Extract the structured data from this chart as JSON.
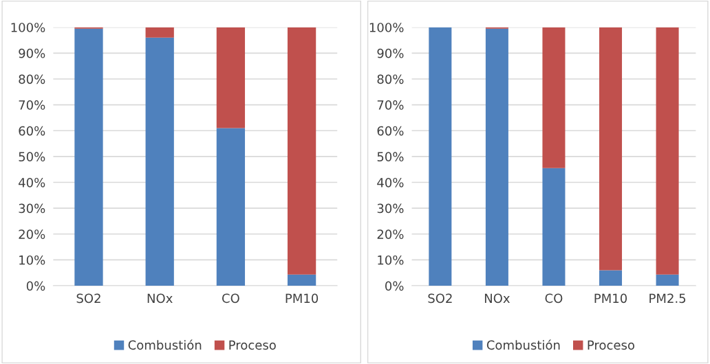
{
  "chart_data": [
    {
      "type": "bar",
      "stacked": true,
      "categories": [
        "SO2",
        "NOx",
        "CO",
        "PM10"
      ],
      "series": [
        {
          "name": "Combustión",
          "color": "#4f81bd",
          "values": [
            99.5,
            96,
            61,
            4.3
          ]
        },
        {
          "name": "Proceso",
          "color": "#c0504d",
          "values": [
            0.5,
            4,
            39,
            95.7
          ]
        }
      ],
      "ylim": [
        0,
        100
      ],
      "yticks": [
        {
          "value": 0,
          "label": "0%"
        },
        {
          "value": 10,
          "label": "10%"
        },
        {
          "value": 20,
          "label": "20%"
        },
        {
          "value": 30,
          "label": "30%"
        },
        {
          "value": 40,
          "label": "40%"
        },
        {
          "value": 50,
          "label": "50%"
        },
        {
          "value": 60,
          "label": "60%"
        },
        {
          "value": 70,
          "label": "70%"
        },
        {
          "value": 80,
          "label": "80%"
        },
        {
          "value": 90,
          "label": "90%"
        },
        {
          "value": 100,
          "label": "100%"
        }
      ],
      "grid": "y",
      "legend": "bottom"
    },
    {
      "type": "bar",
      "stacked": true,
      "categories": [
        "SO2",
        "NOx",
        "CO",
        "PM10",
        "PM2.5"
      ],
      "series": [
        {
          "name": "Combustión",
          "color": "#4f81bd",
          "values": [
            100,
            99.5,
            45.5,
            6,
            4.3
          ]
        },
        {
          "name": "Proceso",
          "color": "#c0504d",
          "values": [
            0,
            0.5,
            54.5,
            94,
            95.7
          ]
        }
      ],
      "ylim": [
        0,
        100
      ],
      "yticks": [
        {
          "value": 0,
          "label": "0%"
        },
        {
          "value": 10,
          "label": "10%"
        },
        {
          "value": 20,
          "label": "20%"
        },
        {
          "value": 30,
          "label": "30%"
        },
        {
          "value": 40,
          "label": "40%"
        },
        {
          "value": 50,
          "label": "50%"
        },
        {
          "value": 60,
          "label": "60%"
        },
        {
          "value": 70,
          "label": "70%"
        },
        {
          "value": 80,
          "label": "80%"
        },
        {
          "value": 90,
          "label": "90%"
        },
        {
          "value": 100,
          "label": "100%"
        }
      ],
      "grid": "y",
      "legend": "bottom"
    }
  ]
}
